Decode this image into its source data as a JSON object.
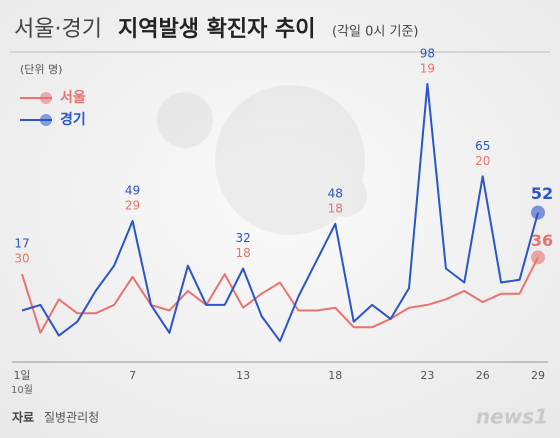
{
  "chart_data": {
    "type": "line",
    "title_region": "서울·경기",
    "title": "지역발생 확진자 추이",
    "subtitle": "(각일 0시 기준)",
    "unit": "(단위 명)",
    "categories": [
      "1일",
      null,
      null,
      null,
      null,
      null,
      "7",
      null,
      null,
      null,
      null,
      null,
      "13",
      null,
      null,
      null,
      null,
      "18",
      null,
      null,
      null,
      null,
      "23",
      null,
      null,
      "26",
      null,
      null,
      "29"
    ],
    "month_label": "10월",
    "series": [
      {
        "name": "서울",
        "color": "#e8736f",
        "values": [
          30,
          9,
          21,
          16,
          16,
          19,
          29,
          19,
          17,
          24,
          19,
          30,
          18,
          23,
          27,
          17,
          17,
          18,
          11,
          11,
          14,
          18,
          19,
          21,
          24,
          20,
          23,
          23,
          36
        ],
        "value_labels": [
          "30",
          null,
          null,
          null,
          null,
          null,
          "29",
          null,
          null,
          null,
          null,
          null,
          "18",
          null,
          null,
          null,
          null,
          "18",
          null,
          null,
          null,
          null,
          "19",
          null,
          null,
          "20",
          null,
          null,
          "36"
        ]
      },
      {
        "name": "경기",
        "color": "#2b55c8",
        "values": [
          17,
          19,
          8,
          13,
          24,
          33,
          49,
          19,
          9,
          33,
          19,
          19,
          32,
          15,
          6,
          22,
          35,
          48,
          13,
          19,
          14,
          25,
          98,
          32,
          27,
          65,
          27,
          28,
          52
        ],
        "value_labels": [
          "17",
          null,
          null,
          null,
          null,
          null,
          "49",
          null,
          null,
          null,
          null,
          null,
          "32",
          null,
          null,
          null,
          null,
          "48",
          null,
          null,
          null,
          null,
          "98",
          null,
          null,
          "65",
          null,
          null,
          "52"
        ]
      }
    ],
    "source_label": "자료",
    "source": "질병관리청",
    "watermark": "news1"
  }
}
